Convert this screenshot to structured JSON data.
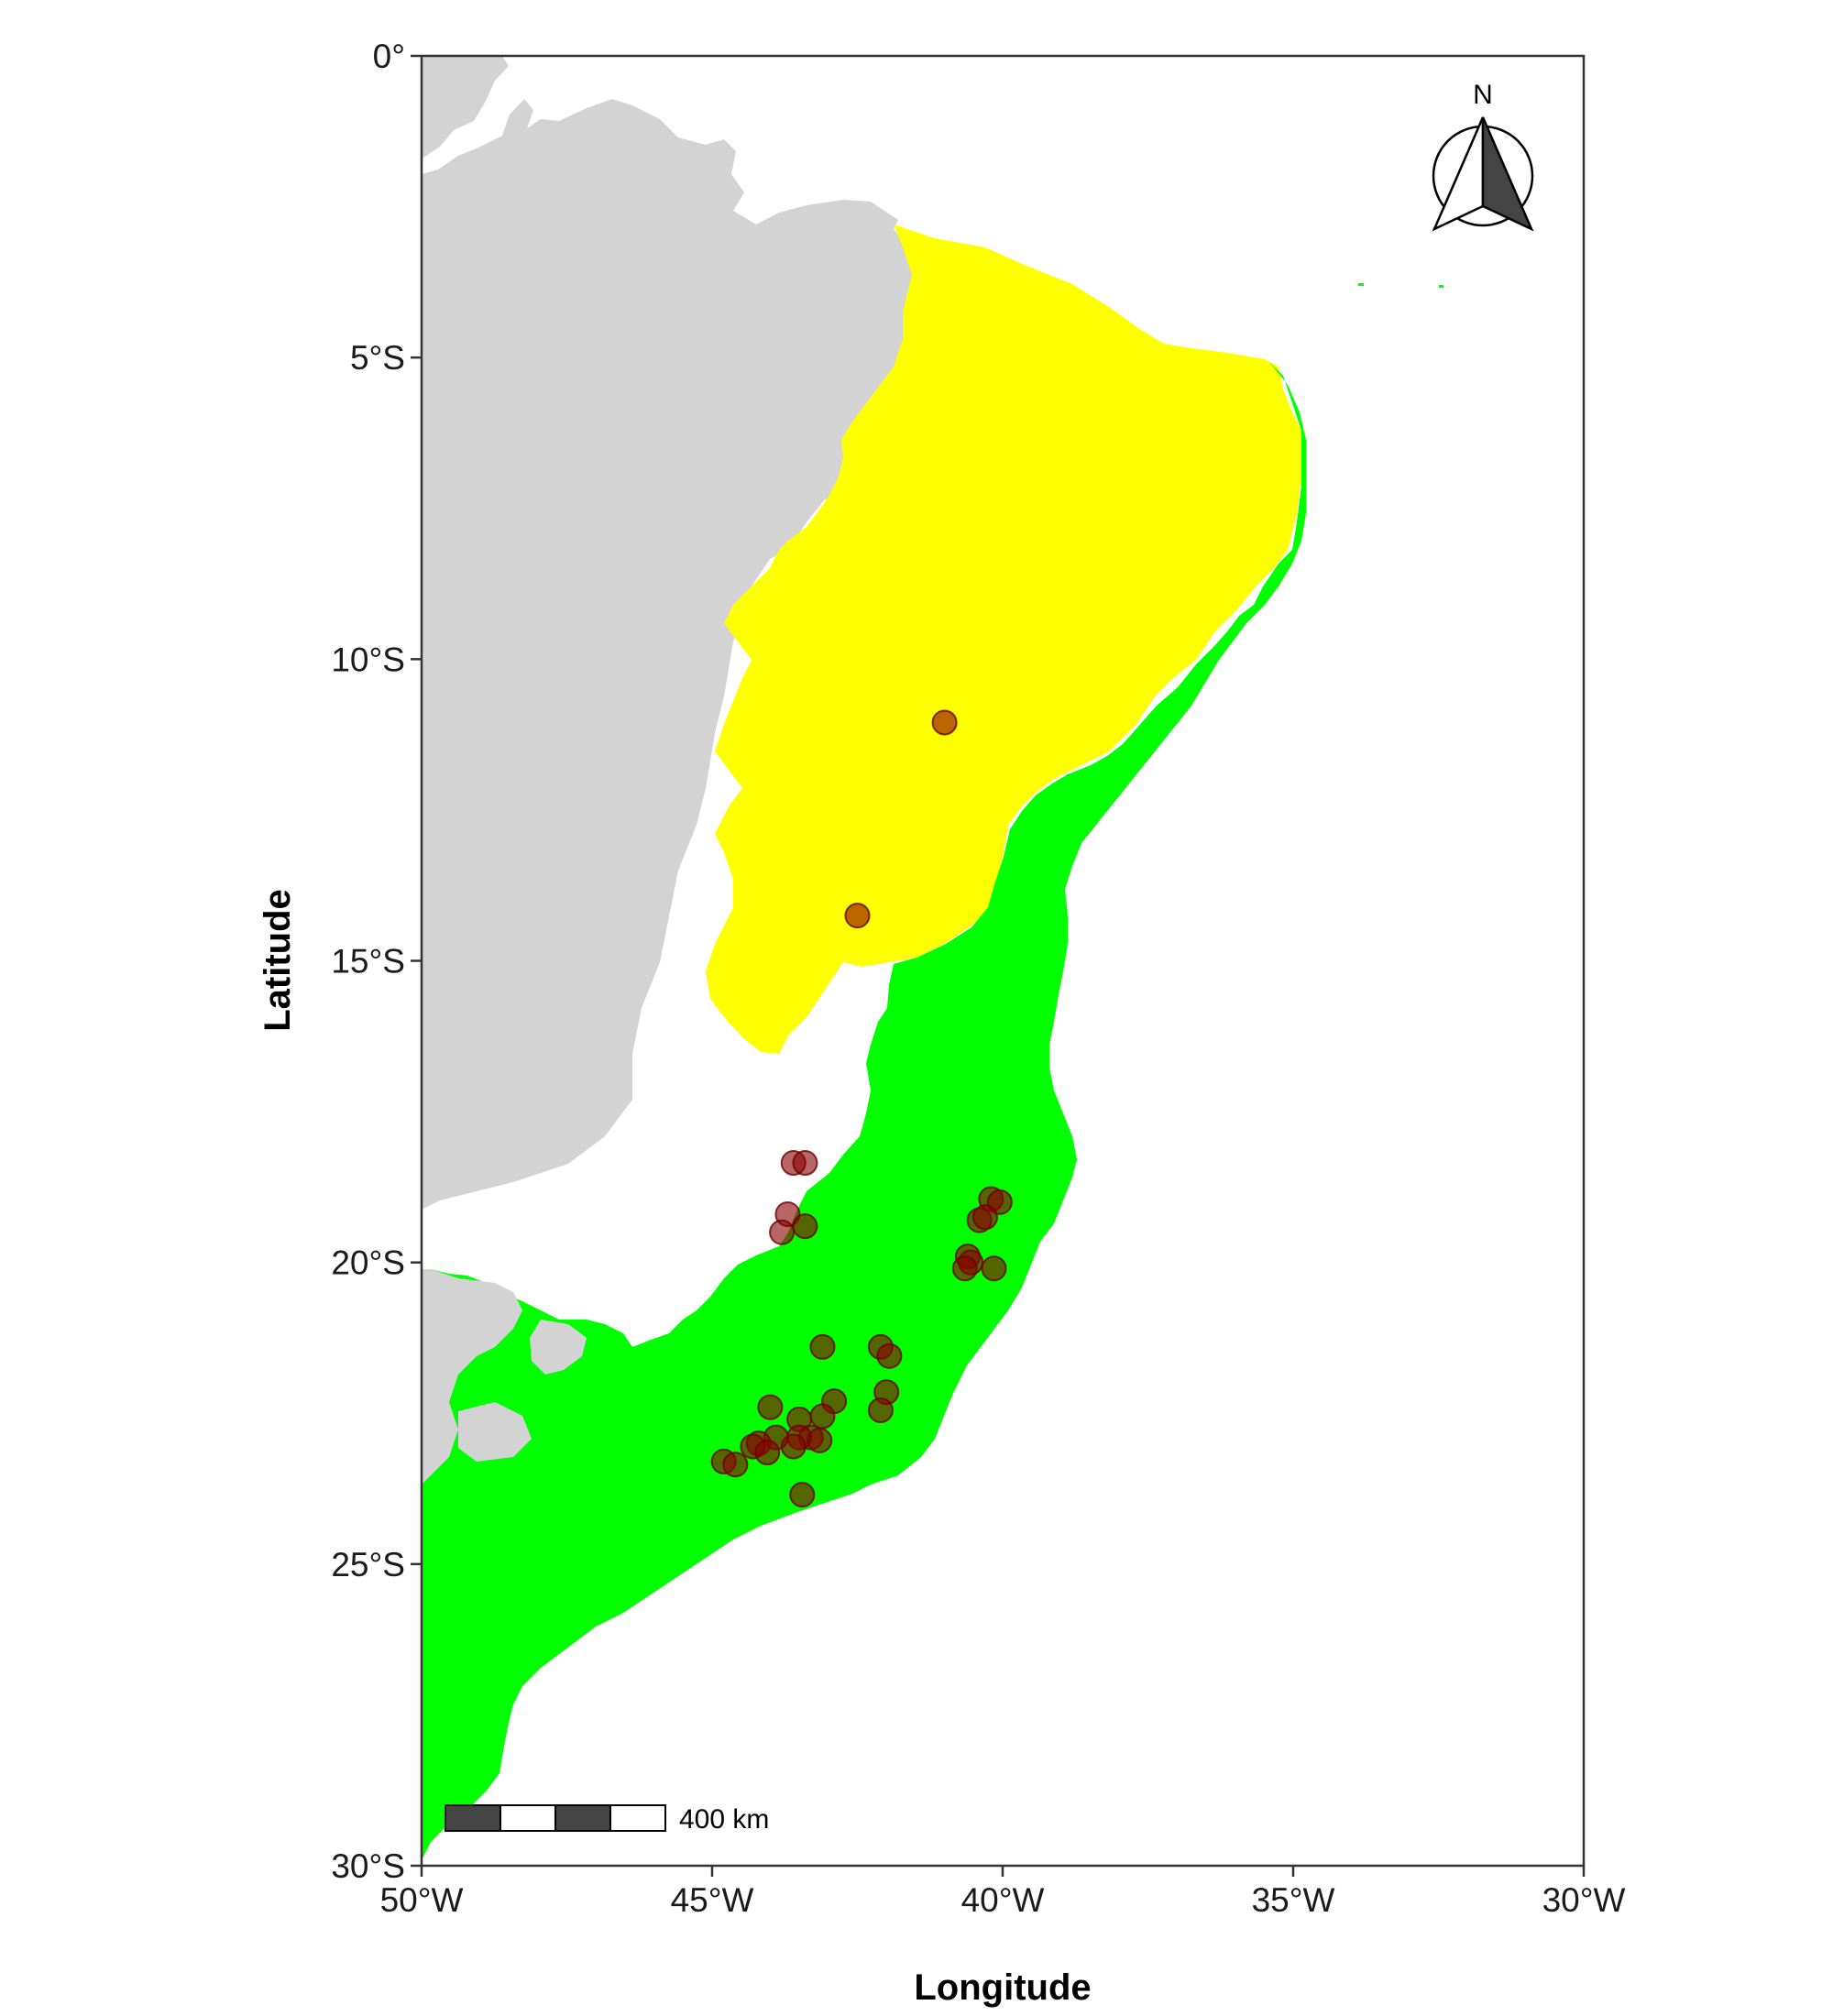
{
  "axes": {
    "xlabel": "Longitude",
    "ylabel": "Latitude",
    "x_ticks": [
      {
        "value": -50,
        "label": "50°W"
      },
      {
        "value": -45,
        "label": "45°W"
      },
      {
        "value": -40,
        "label": "40°W"
      },
      {
        "value": -35,
        "label": "35°W"
      },
      {
        "value": -30,
        "label": "30°W"
      }
    ],
    "y_ticks": [
      {
        "value": 0,
        "label": "0°"
      },
      {
        "value": -5,
        "label": "5°S"
      },
      {
        "value": -10,
        "label": "10°S"
      },
      {
        "value": -15,
        "label": "15°S"
      },
      {
        "value": -20,
        "label": "20°S"
      },
      {
        "value": -25,
        "label": "25°S"
      },
      {
        "value": -30,
        "label": "30°S"
      }
    ],
    "xlim": [
      -50,
      -30
    ],
    "ylim": [
      -30,
      0
    ]
  },
  "north_arrow": {
    "label": "N"
  },
  "scale_bar": {
    "label": "400 km"
  },
  "colors": {
    "land": "#d3d3d3",
    "yellow_region": "#ffff00",
    "green_region": "#00ff00",
    "point_fill": "#8b0000",
    "point_stroke": "#6b0000"
  },
  "chart_data": {
    "type": "scatter",
    "x_label": "Longitude",
    "y_label": "Latitude",
    "points": [
      {
        "lon": -41.0,
        "lat": -11.05
      },
      {
        "lon": -42.5,
        "lat": -14.25
      },
      {
        "lon": -43.6,
        "lat": -18.35
      },
      {
        "lon": -43.4,
        "lat": -18.35
      },
      {
        "lon": -43.7,
        "lat": -19.2
      },
      {
        "lon": -43.8,
        "lat": -19.5
      },
      {
        "lon": -43.4,
        "lat": -19.4
      },
      {
        "lon": -40.2,
        "lat": -18.95
      },
      {
        "lon": -40.05,
        "lat": -19.0
      },
      {
        "lon": -40.4,
        "lat": -19.3
      },
      {
        "lon": -40.3,
        "lat": -19.25
      },
      {
        "lon": -40.6,
        "lat": -19.9
      },
      {
        "lon": -40.55,
        "lat": -20.0
      },
      {
        "lon": -40.65,
        "lat": -20.1
      },
      {
        "lon": -40.15,
        "lat": -20.1
      },
      {
        "lon": -43.1,
        "lat": -21.4
      },
      {
        "lon": -42.1,
        "lat": -21.4
      },
      {
        "lon": -41.95,
        "lat": -21.55
      },
      {
        "lon": -42.0,
        "lat": -22.15
      },
      {
        "lon": -42.1,
        "lat": -22.45
      },
      {
        "lon": -44.0,
        "lat": -22.4
      },
      {
        "lon": -42.9,
        "lat": -22.3
      },
      {
        "lon": -43.5,
        "lat": -22.6
      },
      {
        "lon": -43.1,
        "lat": -22.55
      },
      {
        "lon": -43.3,
        "lat": -22.9
      },
      {
        "lon": -43.5,
        "lat": -22.9
      },
      {
        "lon": -43.15,
        "lat": -22.95
      },
      {
        "lon": -43.6,
        "lat": -23.05
      },
      {
        "lon": -43.9,
        "lat": -22.9
      },
      {
        "lon": -44.2,
        "lat": -23.0
      },
      {
        "lon": -44.3,
        "lat": -23.05
      },
      {
        "lon": -44.05,
        "lat": -23.15
      },
      {
        "lon": -44.8,
        "lat": -23.3
      },
      {
        "lon": -44.6,
        "lat": -23.35
      },
      {
        "lon": -43.45,
        "lat": -23.85
      }
    ]
  }
}
